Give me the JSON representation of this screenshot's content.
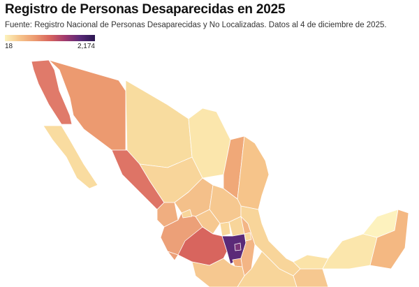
{
  "title": "Registro de Personas Desaparecidas en 2025",
  "subtitle": "Fuente: Registro Nacional de Personas Desaparecidas y No Localizadas. Datos al 4 de diciembre de 2025.",
  "legend": {
    "min": "18",
    "max": "2,174",
    "color_low": "#fcf3bd",
    "color_high": "#2a1650"
  },
  "regions": [
    {
      "id": "baja-california",
      "color": "#e07a6a"
    },
    {
      "id": "baja-california-sur",
      "color": "#f9dca0"
    },
    {
      "id": "sonora",
      "color": "#ec9a70"
    },
    {
      "id": "chihuahua",
      "color": "#f8dc9f"
    },
    {
      "id": "coahuila",
      "color": "#fbe6ac"
    },
    {
      "id": "nuevo-leon",
      "color": "#f0a878"
    },
    {
      "id": "tamaulipas",
      "color": "#f6c48a"
    },
    {
      "id": "sinaloa",
      "color": "#de7466"
    },
    {
      "id": "durango",
      "color": "#f8d59a"
    },
    {
      "id": "zacatecas",
      "color": "#f4c08a"
    },
    {
      "id": "san-luis-potosi",
      "color": "#f6c890"
    },
    {
      "id": "nayarit",
      "color": "#f0ae80"
    },
    {
      "id": "jalisco",
      "color": "#eca078"
    },
    {
      "id": "aguascalientes",
      "color": "#f8d59a"
    },
    {
      "id": "guanajuato",
      "color": "#f6c890"
    },
    {
      "id": "queretaro",
      "color": "#f9d89c"
    },
    {
      "id": "hidalgo",
      "color": "#f8d59a"
    },
    {
      "id": "colima",
      "color": "#eca078"
    },
    {
      "id": "michoacan",
      "color": "#d8655e"
    },
    {
      "id": "estado-de-mexico",
      "color": "#5b2a78"
    },
    {
      "id": "ciudad-de-mexico",
      "color": "#7a3478"
    },
    {
      "id": "morelos",
      "color": "#f0a878"
    },
    {
      "id": "guerrero",
      "color": "#f6c890"
    },
    {
      "id": "puebla",
      "color": "#f3b585"
    },
    {
      "id": "tlaxcala",
      "color": "#f9d89c"
    },
    {
      "id": "veracruz",
      "color": "#f8d59a"
    },
    {
      "id": "oaxaca",
      "color": "#f8d59a"
    },
    {
      "id": "chiapas",
      "color": "#f6c890"
    },
    {
      "id": "tabasco",
      "color": "#fbe3a8"
    },
    {
      "id": "campeche",
      "color": "#fbe6ac"
    },
    {
      "id": "yucatan",
      "color": "#fdf2be"
    },
    {
      "id": "quintana-roo",
      "color": "#f4b882"
    }
  ]
}
